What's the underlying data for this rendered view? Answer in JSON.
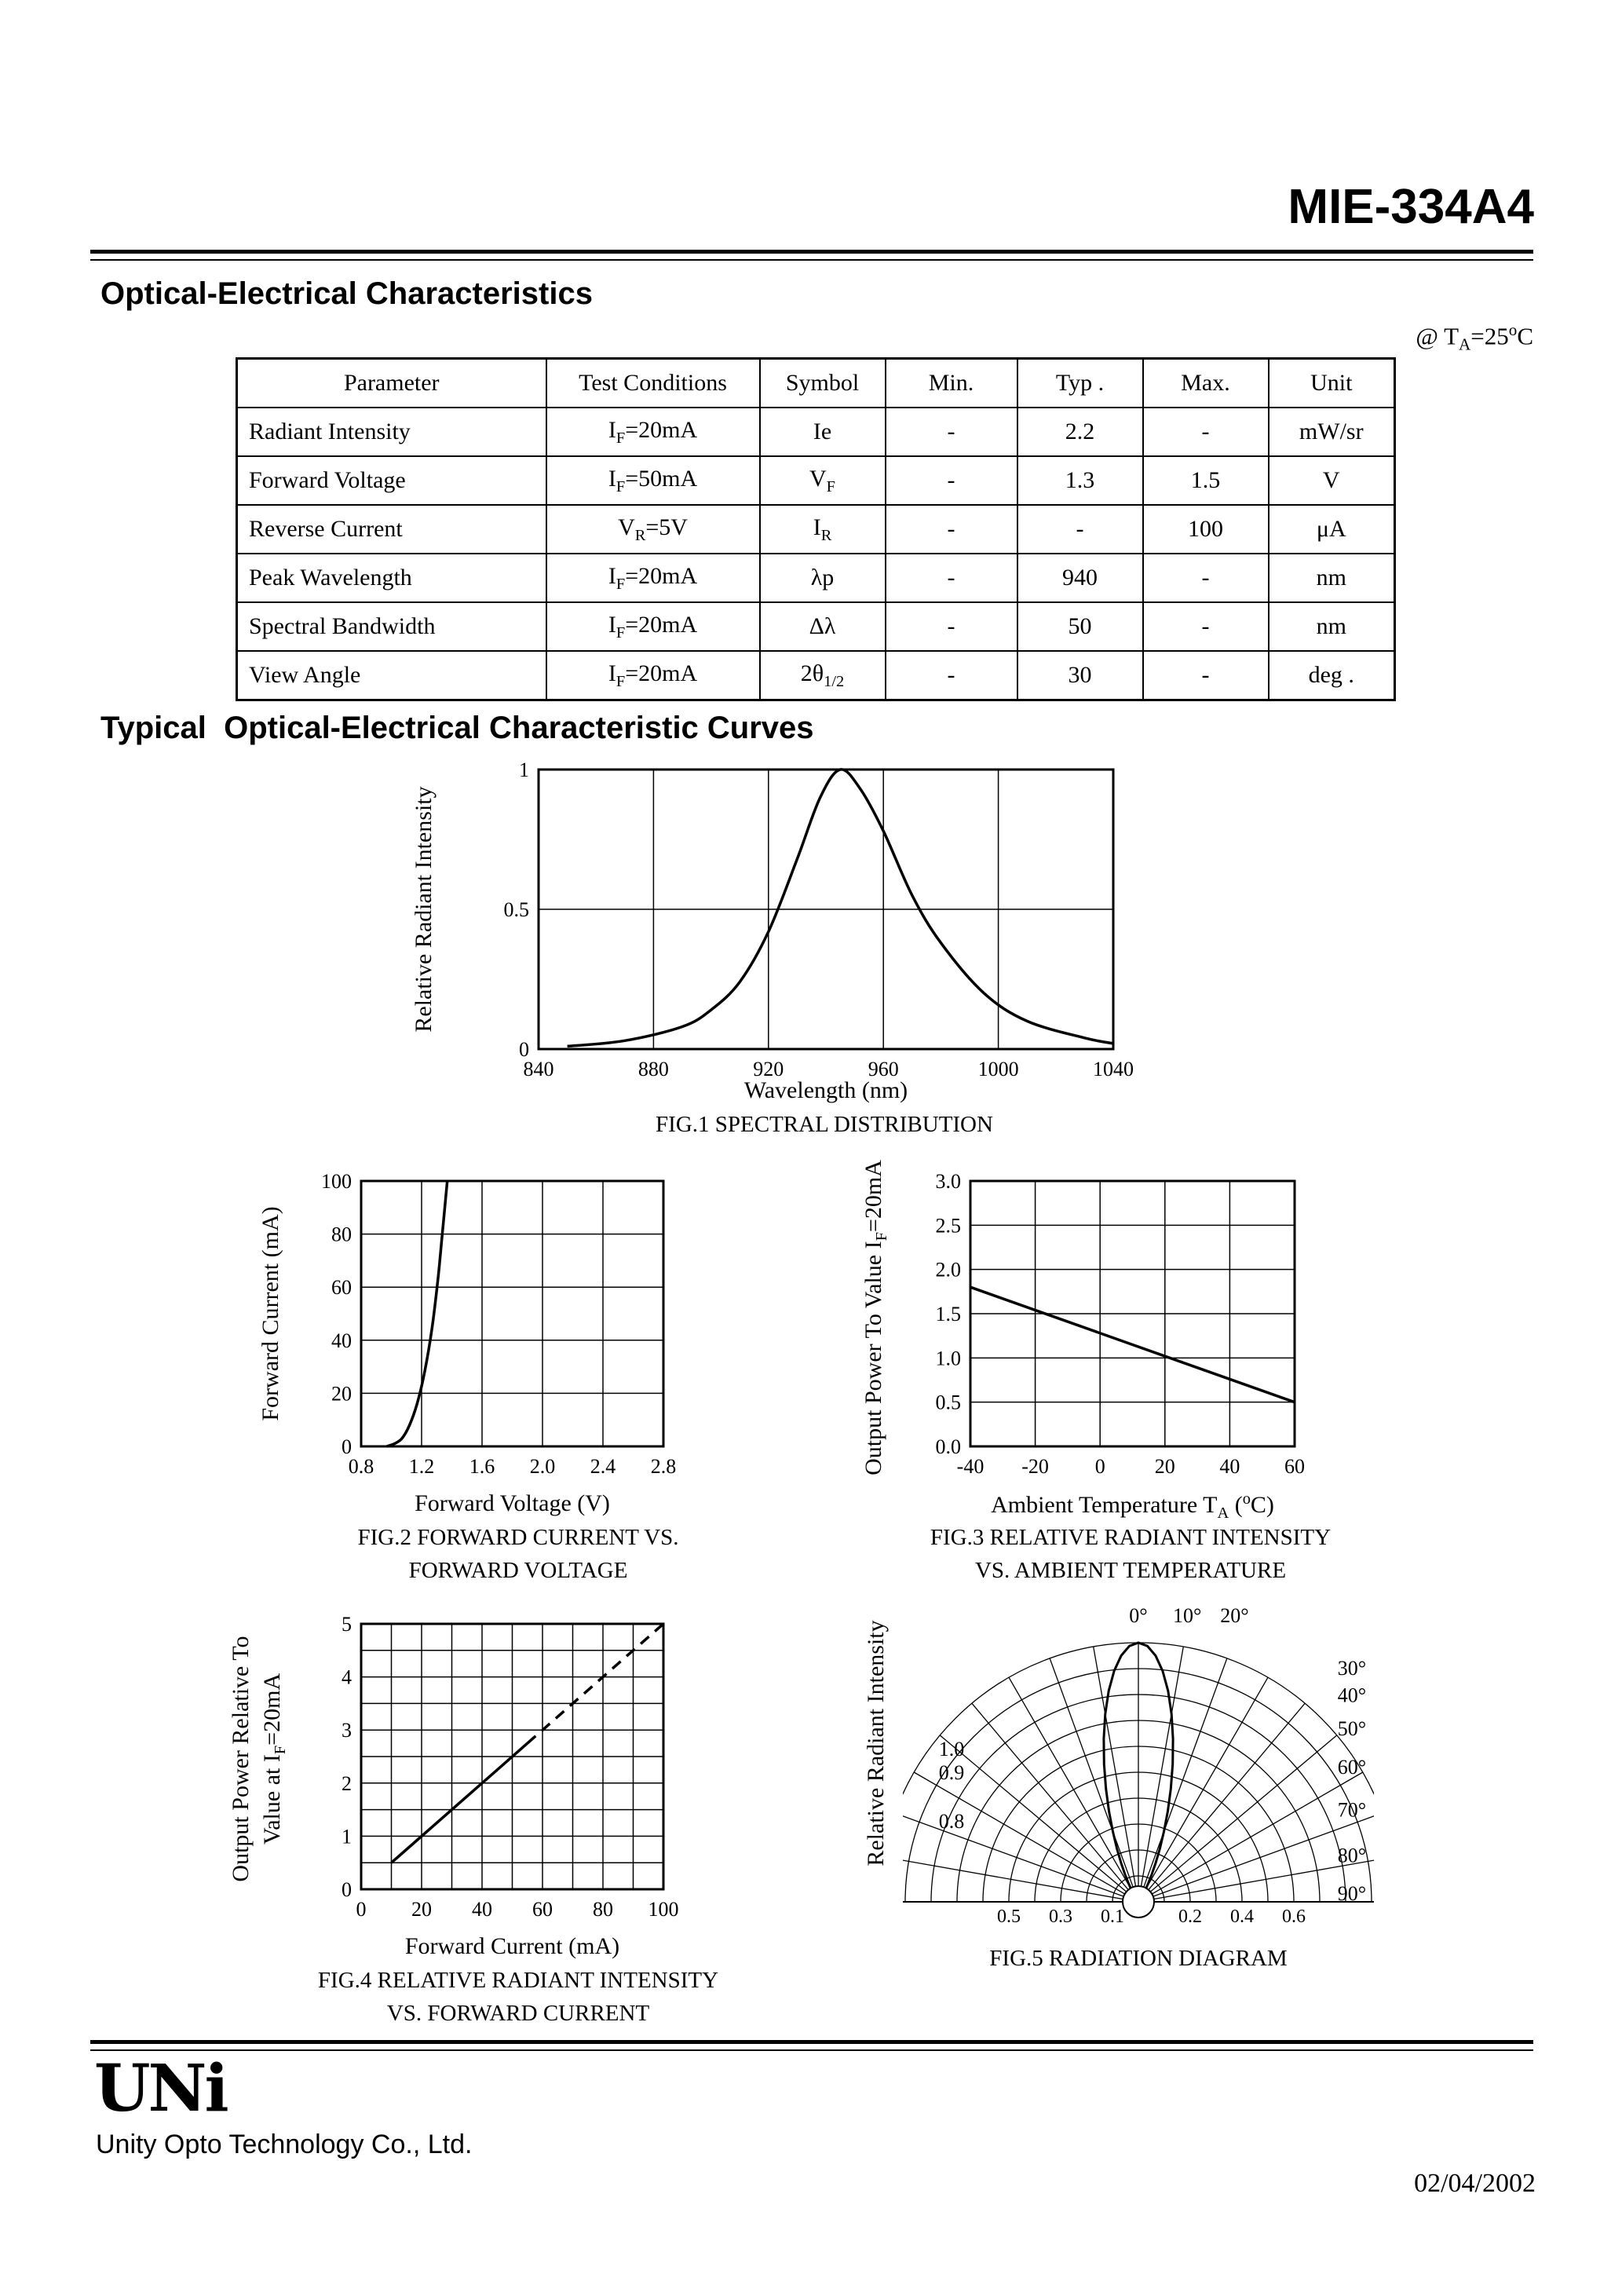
{
  "page": {
    "title": "MIE-334A4",
    "heading1": "Optical-Electrical Characteristics",
    "condition_html": "@ T<sub>A</sub>=25<sup>o</sup>C",
    "heading2": "Typical  Optical-Electrical Characteristic Curves"
  },
  "table": {
    "headers": [
      "Parameter",
      "Test Conditions",
      "Symbol",
      "Min.",
      "Typ .",
      "Max.",
      "Unit"
    ],
    "rows": [
      [
        "Radiant Intensity",
        "I<sub>F</sub>=20mA",
        "Ie",
        "-",
        "2.2",
        "-",
        "mW/sr"
      ],
      [
        "Forward Voltage",
        "I<sub>F</sub>=50mA",
        "V<sub>F</sub>",
        "-",
        "1.3",
        "1.5",
        "V"
      ],
      [
        "Reverse Current",
        "V<sub>R</sub>=5V",
        "I<sub>R</sub>",
        "-",
        "-",
        "100",
        "μA"
      ],
      [
        "Peak Wavelength",
        "I<sub>F</sub>=20mA",
        "λp",
        "-",
        "940",
        "-",
        "nm"
      ],
      [
        "Spectral Bandwidth",
        "I<sub>F</sub>=20mA",
        "Δλ",
        "-",
        "50",
        "-",
        "nm"
      ],
      [
        "View Angle",
        "I<sub>F</sub>=20mA",
        "2θ<sub>1/2</sub>",
        "-",
        "30",
        "-",
        "deg ."
      ]
    ]
  },
  "chart_data": [
    {
      "type": "line",
      "caption": "FIG.1 SPECTRAL DISTRIBUTION",
      "xlabel": "Wavelength (nm)",
      "ylabel": "Relative Radiant Intensity",
      "xlim": [
        840,
        1040
      ],
      "ylim": [
        0,
        1
      ],
      "xticks": [
        840,
        880,
        920,
        960,
        1000,
        1040
      ],
      "xtick_labels": [
        "840",
        "880",
        "920",
        "960",
        "1000",
        "1040"
      ],
      "yticks": [
        0,
        0.5,
        1
      ],
      "ytick_labels": [
        "0",
        "0.5",
        "1"
      ],
      "grid_x": [
        880,
        920,
        960,
        1000
      ],
      "grid_y": [
        0.5
      ],
      "series": [
        {
          "name": "relative-radiant-intensity",
          "smooth": true,
          "x": [
            850,
            870,
            890,
            900,
            910,
            920,
            930,
            938,
            945,
            952,
            960,
            970,
            980,
            995,
            1010,
            1030,
            1040
          ],
          "y": [
            0.01,
            0.03,
            0.08,
            0.14,
            0.24,
            0.42,
            0.68,
            0.9,
            1.0,
            0.93,
            0.78,
            0.55,
            0.38,
            0.2,
            0.1,
            0.04,
            0.02
          ]
        }
      ]
    },
    {
      "type": "line",
      "caption1": "FIG.2 FORWARD CURRENT VS.",
      "caption2": "FORWARD VOLTAGE",
      "xlabel": "Forward Voltage (V)",
      "ylabel": "Forward Current (mA)",
      "xlim": [
        0.8,
        2.8
      ],
      "ylim": [
        0,
        100
      ],
      "xticks": [
        0.8,
        1.2,
        1.6,
        2.0,
        2.4,
        2.8
      ],
      "xtick_labels": [
        "0.8",
        "1.2",
        "1.6",
        "2.0",
        "2.4",
        "2.8"
      ],
      "yticks": [
        0,
        20,
        40,
        60,
        80,
        100
      ],
      "ytick_labels": [
        "0",
        "20",
        "40",
        "60",
        "80",
        "100"
      ],
      "grid_x": [
        1.2,
        1.6,
        2.0,
        2.4
      ],
      "grid_y": [
        20,
        40,
        60,
        80
      ],
      "series": [
        {
          "name": "forward-current-vs-voltage",
          "smooth": true,
          "x": [
            0.97,
            1.02,
            1.07,
            1.12,
            1.17,
            1.22,
            1.27,
            1.31,
            1.34,
            1.37
          ],
          "y": [
            0,
            1,
            3,
            8,
            16,
            28,
            45,
            64,
            82,
            100
          ]
        }
      ]
    },
    {
      "type": "line",
      "caption1": "FIG.3 RELATIVE RADIANT INTENSITY",
      "caption2": "VS. AMBIENT TEMPERATURE",
      "xlabel_html": "Ambient Temperature T<sub>A</sub> (<sup>o</sup>C)",
      "ylabel_html": "Output Power To Value I<sub>F</sub>=20mA",
      "xlim": [
        -40,
        60
      ],
      "ylim": [
        0,
        3
      ],
      "xticks": [
        -40,
        -20,
        0,
        20,
        40,
        60
      ],
      "xtick_labels": [
        "-40",
        "-20",
        "0",
        "20",
        "40",
        "60"
      ],
      "yticks": [
        0,
        0.5,
        1,
        1.5,
        2,
        2.5,
        3
      ],
      "ytick_labels": [
        "0.0",
        "0.5",
        "1.0",
        "1.5",
        "2.0",
        "2.5",
        "3.0"
      ],
      "grid_x": [
        -20,
        0,
        20,
        40
      ],
      "grid_y": [
        0.5,
        1,
        1.5,
        2,
        2.5
      ],
      "series": [
        {
          "name": "output-power-vs-temperature",
          "x": [
            -40,
            60
          ],
          "y": [
            1.8,
            0.5
          ]
        }
      ]
    },
    {
      "type": "line",
      "caption1": "FIG.4 RELATIVE RADIANT INTENSITY",
      "caption2": "VS. FORWARD CURRENT",
      "xlabel": "Forward Current (mA)",
      "ylabel_line1": "Output Power Relative To",
      "ylabel_line2_html": "Value at I<sub>F</sub>=20mA",
      "xlim": [
        0,
        100
      ],
      "ylim": [
        0,
        5
      ],
      "xticks": [
        0,
        20,
        40,
        60,
        80,
        100
      ],
      "xtick_labels": [
        "0",
        "20",
        "40",
        "60",
        "80",
        "100"
      ],
      "yticks": [
        0,
        1,
        2,
        3,
        4,
        5
      ],
      "ytick_labels": [
        "0",
        "1",
        "2",
        "3",
        "4",
        "5"
      ],
      "grid_x": [
        10,
        20,
        30,
        40,
        50,
        60,
        70,
        80,
        90
      ],
      "grid_y": [
        0.5,
        1,
        1.5,
        2,
        2.5,
        3,
        3.5,
        4,
        4.5
      ],
      "series": [
        {
          "name": "relative-output-solid",
          "x": [
            10,
            55
          ],
          "y": [
            0.5,
            2.75
          ]
        },
        {
          "name": "relative-output-dashed",
          "dash": true,
          "x": [
            55,
            100
          ],
          "y": [
            2.75,
            5
          ]
        }
      ]
    },
    {
      "type": "polar",
      "caption": "FIG.5 RADIATION DIAGRAM",
      "ylabel": "Relative Radiant Intensity",
      "rings": [
        0.1,
        0.2,
        0.3,
        0.4,
        0.5,
        0.6,
        0.7,
        0.8,
        0.9,
        1.0
      ],
      "angle_step_deg": 10,
      "beam_cos_exponent": 20,
      "beam_half_angle_deg": 15,
      "top_angles": [
        0,
        10,
        20
      ],
      "top_angle_labels": [
        "0°",
        "10°",
        "20°"
      ],
      "right_angles": [
        30,
        40,
        50,
        60,
        70,
        80,
        90
      ],
      "right_angle_labels": [
        "30°",
        "40°",
        "50°",
        "60°",
        "70°",
        "80°",
        "90°"
      ],
      "ring_labels_left": [
        "1.0",
        "0.9",
        "0.8"
      ],
      "axis_values_left": [
        0.5,
        0.3,
        0.1
      ],
      "axis_value_labels_left": [
        "0.5",
        "0.3",
        "0.1"
      ],
      "axis_values_right": [
        0.2,
        0.4,
        0.6
      ],
      "axis_value_labels_right": [
        "0.2",
        "0.4",
        "0.6"
      ]
    }
  ],
  "footer": {
    "logo": "UNi",
    "company": "Unity Opto Technology Co., Ltd.",
    "date": "02/04/2002"
  }
}
